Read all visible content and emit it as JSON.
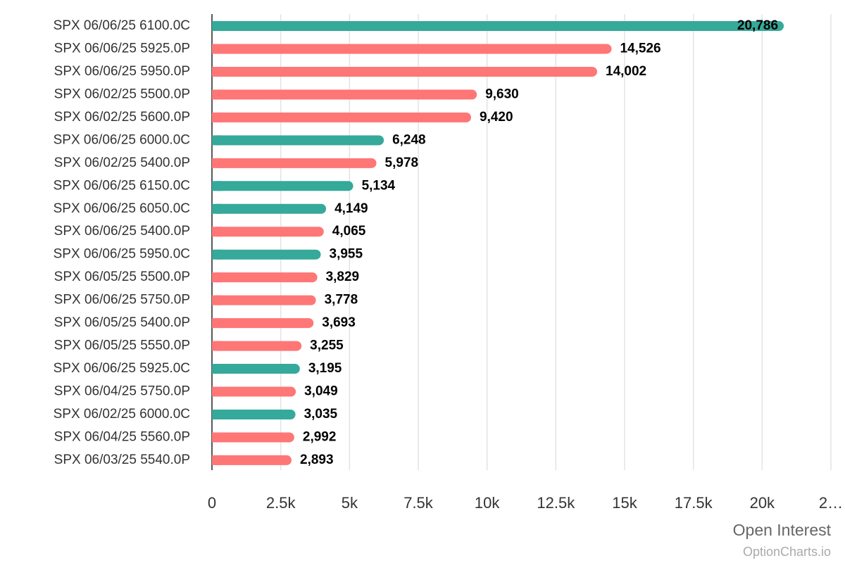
{
  "chart_data": {
    "type": "bar",
    "orientation": "horizontal",
    "categories": [
      "SPX 06/06/25 6100.0C",
      "SPX 06/06/25 5925.0P",
      "SPX 06/06/25 5950.0P",
      "SPX 06/02/25 5500.0P",
      "SPX 06/02/25 5600.0P",
      "SPX 06/06/25 6000.0C",
      "SPX 06/02/25 5400.0P",
      "SPX 06/06/25 6150.0C",
      "SPX 06/06/25 6050.0C",
      "SPX 06/06/25 5400.0P",
      "SPX 06/06/25 5950.0C",
      "SPX 06/05/25 5500.0P",
      "SPX 06/06/25 5750.0P",
      "SPX 06/05/25 5400.0P",
      "SPX 06/05/25 5550.0P",
      "SPX 06/06/25 5925.0C",
      "SPX 06/04/25 5750.0P",
      "SPX 06/02/25 6000.0C",
      "SPX 06/04/25 5560.0P",
      "SPX 06/03/25 5540.0P"
    ],
    "values": [
      20786,
      14526,
      14002,
      9630,
      9420,
      6248,
      5978,
      5134,
      4149,
      4065,
      3955,
      3829,
      3778,
      3693,
      3255,
      3195,
      3049,
      3035,
      2992,
      2893
    ],
    "value_labels": [
      "20,786",
      "14,526",
      "14,002",
      "9,630",
      "9,420",
      "6,248",
      "5,978",
      "5,134",
      "4,149",
      "4,065",
      "3,955",
      "3,829",
      "3,778",
      "3,693",
      "3,255",
      "3,195",
      "3,049",
      "3,035",
      "2,992",
      "2,893"
    ],
    "colors": [
      "#35a99a",
      "#ff7676",
      "#ff7676",
      "#ff7676",
      "#ff7676",
      "#35a99a",
      "#ff7676",
      "#35a99a",
      "#35a99a",
      "#ff7676",
      "#35a99a",
      "#ff7676",
      "#ff7676",
      "#ff7676",
      "#ff7676",
      "#35a99a",
      "#ff7676",
      "#35a99a",
      "#ff7676",
      "#ff7676"
    ],
    "xlim": [
      0,
      22500
    ],
    "xticks": [
      0,
      {
        "value": 2500,
        "label": "2.5k"
      },
      {
        "value": 5000,
        "label": "5k"
      },
      {
        "value": 7500,
        "label": "7.5k"
      },
      {
        "value": 10000,
        "label": "10k"
      },
      {
        "value": 12500,
        "label": "12.5k"
      },
      {
        "value": 15000,
        "label": "15k"
      },
      {
        "value": 17500,
        "label": "17.5k"
      },
      {
        "value": 20000,
        "label": "20k"
      },
      {
        "value": 22500,
        "label": "2…"
      }
    ],
    "xlabel": "Open Interest",
    "source": "OptionCharts.io",
    "grid": true
  }
}
